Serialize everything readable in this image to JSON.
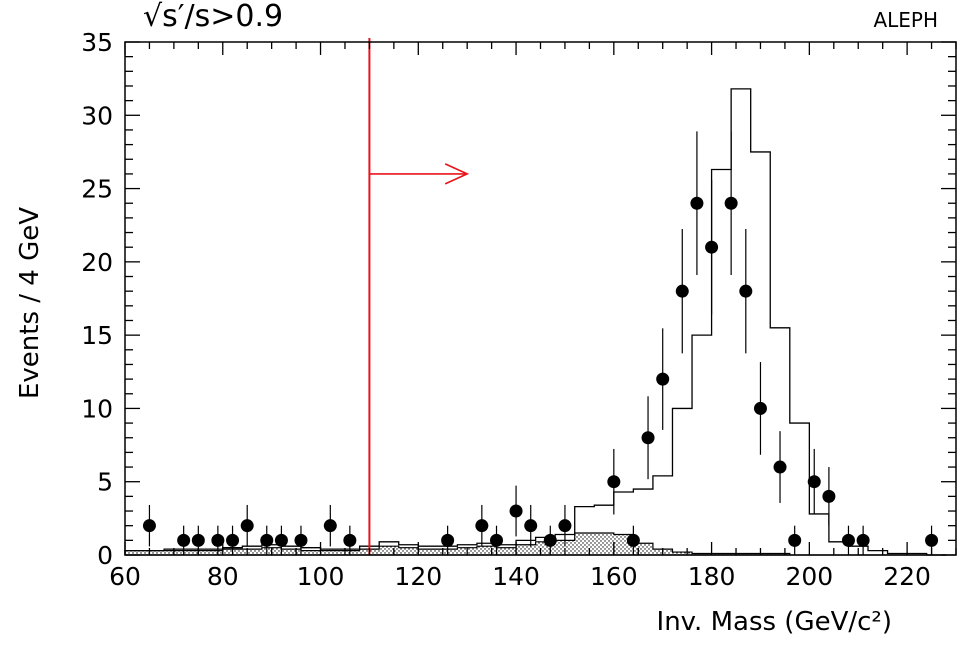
{
  "chart_data": {
    "type": "histogram-with-points",
    "experiment_label": "ALEPH",
    "selection_label": "√s′/s>0.9",
    "xlabel": "Inv. Mass (GeV/c²)",
    "ylabel": "Events / 4 GeV",
    "xlim": [
      60,
      230
    ],
    "ylim": [
      0,
      35
    ],
    "x_ticks": [
      60,
      80,
      100,
      120,
      140,
      160,
      180,
      200,
      220
    ],
    "y_ticks": [
      0,
      5,
      10,
      15,
      20,
      25,
      30,
      35
    ],
    "cut": {
      "x": 110,
      "arrow_y": 26,
      "arrow_to_x": 130
    },
    "bin_edges": [
      60,
      64,
      68,
      72,
      76,
      80,
      84,
      88,
      92,
      96,
      100,
      104,
      108,
      112,
      116,
      120,
      124,
      128,
      132,
      136,
      140,
      144,
      148,
      152,
      156,
      160,
      164,
      168,
      172,
      176,
      180,
      184,
      188,
      192,
      196,
      200,
      204,
      208,
      212,
      216,
      220,
      224,
      228
    ],
    "mc_total": [
      0.3,
      0.3,
      0.4,
      0.4,
      0.4,
      0.5,
      0.6,
      0.7,
      0.6,
      0.5,
      0.4,
      0.4,
      0.6,
      0.9,
      0.7,
      0.6,
      0.6,
      0.7,
      0.8,
      0.7,
      1.0,
      1.2,
      1.4,
      3.3,
      3.4,
      4.3,
      4.5,
      5.4,
      10.0,
      15.0,
      26.3,
      31.8,
      27.5,
      15.5,
      9.0,
      2.8,
      0.9,
      0.6,
      0.3,
      0.1,
      0.1,
      0.0
    ],
    "background": [
      0.3,
      0.3,
      0.3,
      0.3,
      0.3,
      0.4,
      0.4,
      0.5,
      0.4,
      0.3,
      0.3,
      0.3,
      0.4,
      0.6,
      0.5,
      0.4,
      0.4,
      0.5,
      0.6,
      0.5,
      0.7,
      0.9,
      1.0,
      1.5,
      1.5,
      1.4,
      0.8,
      0.4,
      0.2,
      0.1,
      0.1,
      0.1,
      0.1,
      0.1,
      0.0,
      0.0,
      0.0,
      0.0,
      0.0,
      0.0,
      0.0,
      0.0
    ],
    "data_points": [
      {
        "x": 65,
        "y": 2
      },
      {
        "x": 72,
        "y": 1
      },
      {
        "x": 75,
        "y": 1
      },
      {
        "x": 79,
        "y": 1
      },
      {
        "x": 82,
        "y": 1
      },
      {
        "x": 85,
        "y": 2
      },
      {
        "x": 89,
        "y": 1
      },
      {
        "x": 92,
        "y": 1
      },
      {
        "x": 96,
        "y": 1
      },
      {
        "x": 102,
        "y": 2
      },
      {
        "x": 106,
        "y": 1
      },
      {
        "x": 126,
        "y": 1
      },
      {
        "x": 133,
        "y": 2
      },
      {
        "x": 136,
        "y": 1
      },
      {
        "x": 140,
        "y": 3
      },
      {
        "x": 143,
        "y": 2
      },
      {
        "x": 147,
        "y": 1
      },
      {
        "x": 150,
        "y": 2
      },
      {
        "x": 160,
        "y": 5
      },
      {
        "x": 164,
        "y": 1
      },
      {
        "x": 167,
        "y": 8
      },
      {
        "x": 170,
        "y": 12
      },
      {
        "x": 174,
        "y": 18
      },
      {
        "x": 177,
        "y": 24
      },
      {
        "x": 180,
        "y": 21
      },
      {
        "x": 184,
        "y": 24
      },
      {
        "x": 187,
        "y": 18
      },
      {
        "x": 190,
        "y": 10
      },
      {
        "x": 194,
        "y": 6
      },
      {
        "x": 197,
        "y": 1
      },
      {
        "x": 201,
        "y": 5
      },
      {
        "x": 204,
        "y": 4
      },
      {
        "x": 208,
        "y": 1
      },
      {
        "x": 211,
        "y": 1
      },
      {
        "x": 225,
        "y": 1
      }
    ],
    "colors": {
      "axis": "#000000",
      "cut": "#e8141c",
      "hatch": "#000000"
    }
  }
}
